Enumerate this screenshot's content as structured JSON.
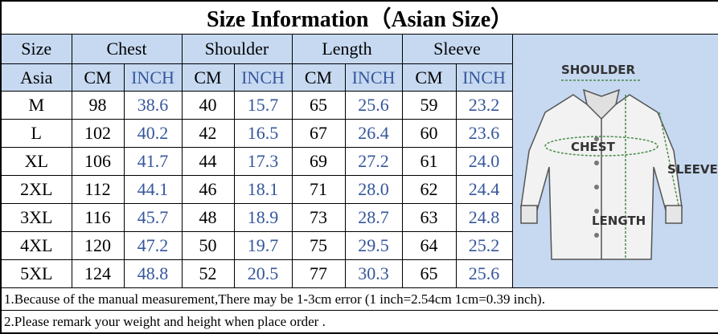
{
  "title": "Size Information（Asian Size）",
  "table": {
    "groups": [
      "Size",
      "Chest",
      "Shoulder",
      "Length",
      "Sleeve"
    ],
    "subheader": [
      "Asia",
      "CM",
      "INCH",
      "CM",
      "INCH",
      "CM",
      "INCH",
      "CM",
      "INCH"
    ],
    "rows": [
      [
        "M",
        "98",
        "38.6",
        "40",
        "15.7",
        "65",
        "25.6",
        "59",
        "23.2"
      ],
      [
        "L",
        "102",
        "40.2",
        "42",
        "16.5",
        "67",
        "26.4",
        "60",
        "23.6"
      ],
      [
        "XL",
        "106",
        "41.7",
        "44",
        "17.3",
        "69",
        "27.2",
        "61",
        "24.0"
      ],
      [
        "2XL",
        "112",
        "44.1",
        "46",
        "18.1",
        "71",
        "28.0",
        "62",
        "24.4"
      ],
      [
        "3XL",
        "116",
        "45.7",
        "48",
        "18.9",
        "73",
        "28.7",
        "63",
        "24.8"
      ],
      [
        "4XL",
        "120",
        "47.2",
        "50",
        "19.7",
        "75",
        "29.5",
        "64",
        "25.2"
      ],
      [
        "5XL",
        "124",
        "48.8",
        "52",
        "20.5",
        "77",
        "30.3",
        "65",
        "25.6"
      ]
    ]
  },
  "diagram": {
    "shoulder": "SHOULDER",
    "chest": "CHEST",
    "sleeve": "SLEEVE",
    "length": "LENGTH"
  },
  "notes": [
    "1.Because of the manual measurement,There may be 1-3cm error (1 inch=2.54cm 1cm=0.39 inch).",
    "2.Please remark your weight and height when place order ."
  ]
}
